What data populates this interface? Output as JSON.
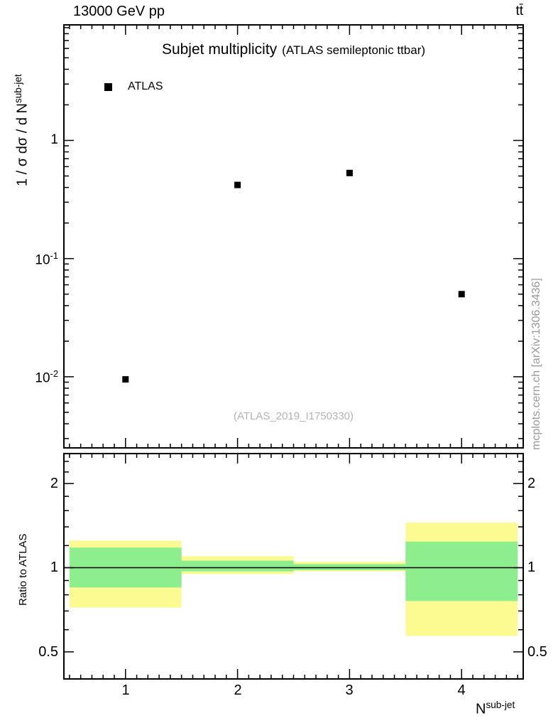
{
  "header": {
    "left": "13000 GeV pp",
    "right": "tt̄"
  },
  "main_panel": {
    "title": "Subjet multiplicity",
    "title_suffix": "(ATLAS semileptonic ttbar)",
    "legend_label": "ATLAS",
    "ylabel_base": "1 / σ dσ / d N",
    "ylabel_sup": "sub-jet",
    "ytick_top": "1",
    "ytick_mid_base": "10",
    "ytick_mid_sup": "-1",
    "ytick_low_base": "10",
    "ytick_low_sup": "-2",
    "watermark": "(ATLAS_2019_I1750330)",
    "side_note": "mcplots.cern.ch [arXiv:1306.3436]"
  },
  "ratio_panel": {
    "ylabel": "Ratio to ATLAS",
    "ytick_labels": [
      "2",
      "1",
      "0.5"
    ]
  },
  "x_axis": {
    "tick_labels": [
      "1",
      "2",
      "3",
      "4"
    ],
    "label_base": "N",
    "label_sup": "sub-jet"
  },
  "colors": {
    "yellow_band": "#fbfb91",
    "green_band": "#8cee8c",
    "marker": "#000000",
    "watermark_text": "#b3b3b3",
    "side_note_text": "#999999"
  },
  "chart_data": [
    {
      "type": "scatter",
      "title": "Subjet multiplicity (ATLAS semileptonic ttbar)",
      "xlabel": "N^sub-jet",
      "ylabel": "1 / σ dσ / d N^sub-jet",
      "xscale": "linear",
      "yscale": "log",
      "xlim": [
        0.45,
        4.55
      ],
      "ylim": [
        0.0025,
        9.5
      ],
      "xticks": [
        1,
        2,
        3,
        4
      ],
      "ytick_labels": [
        "1",
        "10^-1",
        "10^-2"
      ],
      "legend_position": "top-left-inside",
      "grid": false,
      "series": [
        {
          "name": "ATLAS",
          "marker": "filled-square",
          "color": "#000000",
          "x": [
            1,
            2,
            3,
            4
          ],
          "y": [
            0.0095,
            0.42,
            0.53,
            0.05
          ]
        }
      ],
      "watermark": "(ATLAS_2019_I1750330)"
    },
    {
      "type": "ratio-bands",
      "ylabel": "Ratio to ATLAS",
      "yscale": "log",
      "ylim": [
        0.4,
        2.56
      ],
      "yticks": [
        0.5,
        1,
        2
      ],
      "yticks_minor": [
        0.6,
        0.7,
        0.8,
        0.9,
        1.2,
        1.4,
        1.6,
        1.8,
        2.2,
        2.4
      ],
      "reference_line": 1.0,
      "bands": [
        {
          "x": 1,
          "xlo": 0.5,
          "xhi": 1.5,
          "yellow": [
            0.72,
            1.25
          ],
          "green": [
            0.85,
            1.18
          ]
        },
        {
          "x": 2,
          "xlo": 1.5,
          "xhi": 2.5,
          "yellow": [
            0.95,
            1.1
          ],
          "green": [
            0.97,
            1.06
          ]
        },
        {
          "x": 3,
          "xlo": 2.5,
          "xhi": 3.5,
          "yellow": [
            0.97,
            1.05
          ],
          "green": [
            0.98,
            1.03
          ]
        },
        {
          "x": 4,
          "xlo": 3.5,
          "xhi": 4.5,
          "yellow": [
            0.57,
            1.45
          ],
          "green": [
            0.76,
            1.24
          ]
        }
      ]
    }
  ]
}
